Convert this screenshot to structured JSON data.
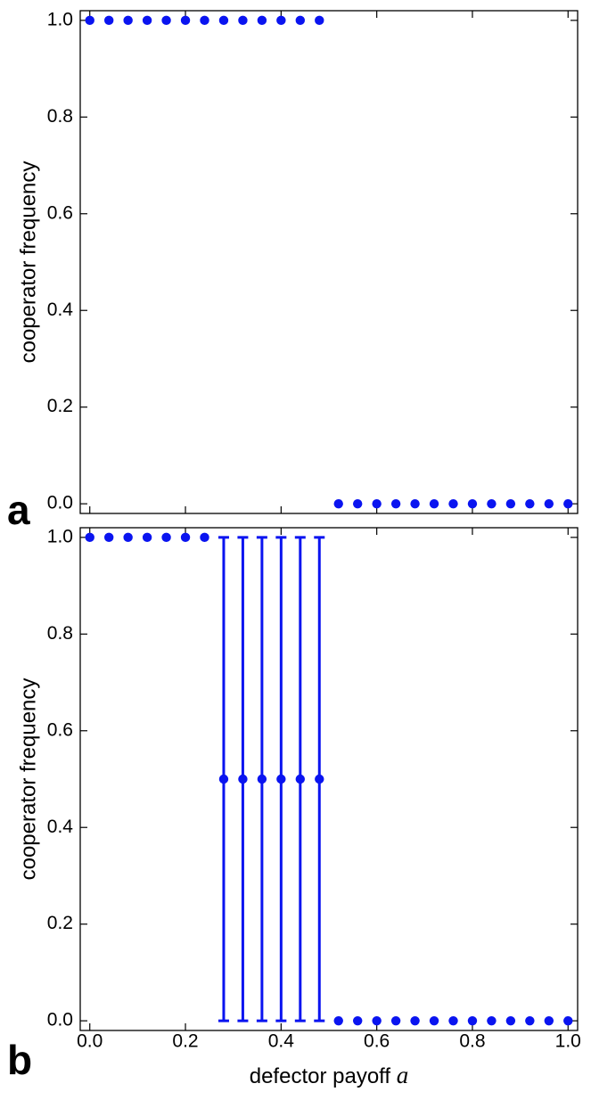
{
  "chart_data": [
    {
      "type": "scatter",
      "panel_label": "a",
      "ylabel": "cooperator frequency",
      "color": "#0a14f0",
      "x": [
        0,
        0.04,
        0.08,
        0.12,
        0.16,
        0.2,
        0.24,
        0.28,
        0.32,
        0.36,
        0.4,
        0.44,
        0.48,
        0.52,
        0.56,
        0.6,
        0.64,
        0.68,
        0.72,
        0.76,
        0.8,
        0.84,
        0.88,
        0.92,
        0.96,
        1
      ],
      "values": [
        1,
        1,
        1,
        1,
        1,
        1,
        1,
        1,
        1,
        1,
        1,
        1,
        1,
        0,
        0,
        0,
        0,
        0,
        0,
        0,
        0,
        0,
        0,
        0,
        0,
        0
      ],
      "xlim": [
        -0.02,
        1.02
      ],
      "ylim": [
        -0.02,
        1.02
      ],
      "xticks": [
        0,
        0.2,
        0.4,
        0.6,
        0.8,
        1
      ],
      "xtick_labels": false,
      "yticks": [
        {
          "value": 0,
          "label": "0.0"
        },
        {
          "value": 0.2,
          "label": "0.2"
        },
        {
          "value": 0.4,
          "label": "0.4"
        },
        {
          "value": 0.6,
          "label": "0.6"
        },
        {
          "value": 0.8,
          "label": "0.8"
        },
        {
          "value": 1,
          "label": "1.0"
        }
      ]
    },
    {
      "type": "scatter",
      "panel_label": "b",
      "ylabel": "cooperator frequency",
      "xlabel": "defector payoff",
      "xlabel_symbol": "a",
      "color": "#0a14f0",
      "x": [
        0,
        0.04,
        0.08,
        0.12,
        0.16,
        0.2,
        0.24,
        0.28,
        0.32,
        0.36,
        0.4,
        0.44,
        0.48,
        0.52,
        0.56,
        0.6,
        0.64,
        0.68,
        0.72,
        0.76,
        0.8,
        0.84,
        0.88,
        0.92,
        0.96,
        1
      ],
      "values": [
        1,
        1,
        1,
        1,
        1,
        1,
        1,
        0.5,
        0.5,
        0.5,
        0.5,
        0.5,
        0.5,
        0,
        0,
        0,
        0,
        0,
        0,
        0,
        0,
        0,
        0,
        0,
        0,
        0
      ],
      "errors": [
        null,
        null,
        null,
        null,
        null,
        null,
        null,
        0.5,
        0.5,
        0.5,
        0.5,
        0.5,
        0.5,
        null,
        null,
        null,
        null,
        null,
        null,
        null,
        null,
        null,
        null,
        null,
        null,
        null
      ],
      "xlim": [
        -0.02,
        1.02
      ],
      "ylim": [
        -0.02,
        1.02
      ],
      "xticks": [
        {
          "value": 0,
          "label": "0.0"
        },
        {
          "value": 0.2,
          "label": "0.2"
        },
        {
          "value": 0.4,
          "label": "0.4"
        },
        {
          "value": 0.6,
          "label": "0.6"
        },
        {
          "value": 0.8,
          "label": "0.8"
        },
        {
          "value": 1,
          "label": "1.0"
        }
      ],
      "xtick_labels": true,
      "yticks": [
        {
          "value": 0,
          "label": "0.0"
        },
        {
          "value": 0.2,
          "label": "0.2"
        },
        {
          "value": 0.4,
          "label": "0.4"
        },
        {
          "value": 0.6,
          "label": "0.6"
        },
        {
          "value": 0.8,
          "label": "0.8"
        },
        {
          "value": 1,
          "label": "1.0"
        }
      ]
    }
  ]
}
